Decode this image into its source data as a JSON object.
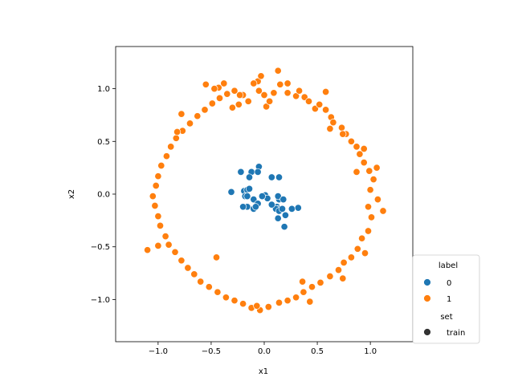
{
  "chart_data": {
    "type": "scatter",
    "title": "",
    "xlabel": "x1",
    "ylabel": "x2",
    "xlim": [
      -1.4,
      1.4
    ],
    "ylim": [
      -1.4,
      1.4
    ],
    "xticks": [
      -1.0,
      -0.5,
      0.0,
      0.5,
      1.0
    ],
    "yticks": [
      -1.0,
      -0.5,
      0.0,
      0.5,
      1.0
    ],
    "xtick_labels": [
      "−1.0",
      "−0.5",
      "0.0",
      "0.5",
      "1.0"
    ],
    "ytick_labels": [
      "−1.0",
      "−0.5",
      "0.0",
      "0.5",
      "1.0"
    ],
    "grid": false,
    "legend": {
      "placement": "right-bottom (outside)",
      "hue_title": "label",
      "style_title": "set",
      "entries": [
        {
          "label": "0",
          "color": "#1f77b4"
        },
        {
          "label": "1",
          "color": "#ff7f0e"
        },
        {
          "label": "train",
          "color": "#333333"
        }
      ]
    },
    "series": [
      {
        "name": "0",
        "color": "#1f77b4",
        "points": [
          [
            -0.05,
            0.26
          ],
          [
            -0.22,
            0.21
          ],
          [
            -0.12,
            0.21
          ],
          [
            -0.06,
            0.21
          ],
          [
            -0.14,
            0.16
          ],
          [
            0.07,
            0.16
          ],
          [
            0.14,
            0.16
          ],
          [
            -0.31,
            0.02
          ],
          [
            -0.19,
            0.03
          ],
          [
            -0.16,
            0.04
          ],
          [
            -0.14,
            0.05
          ],
          [
            -0.18,
            -0.02
          ],
          [
            0.01,
            -0.01
          ],
          [
            0.03,
            -0.04
          ],
          [
            0.14,
            -0.05
          ],
          [
            -0.1,
            -0.05
          ],
          [
            0.13,
            -0.02
          ],
          [
            0.18,
            -0.05
          ],
          [
            0.12,
            -0.12
          ],
          [
            0.13,
            -0.14
          ],
          [
            0.11,
            -0.14
          ],
          [
            0.14,
            -0.16
          ],
          [
            -0.16,
            -0.12
          ],
          [
            -0.1,
            -0.14
          ],
          [
            0.07,
            -0.1
          ],
          [
            -0.2,
            -0.12
          ],
          [
            -0.06,
            -0.09
          ],
          [
            -0.08,
            -0.12
          ],
          [
            0.2,
            -0.2
          ],
          [
            0.13,
            -0.23
          ],
          [
            0.19,
            -0.31
          ],
          [
            0.26,
            -0.14
          ],
          [
            0.32,
            -0.13
          ],
          [
            0.17,
            -0.14
          ],
          [
            -0.16,
            -0.02
          ],
          [
            -0.02,
            -0.02
          ]
        ]
      },
      {
        "name": "1",
        "color": "#ff7f0e",
        "points": [
          [
            -0.55,
            1.04
          ],
          [
            -0.43,
            1.01
          ],
          [
            -0.38,
            1.05
          ],
          [
            -0.47,
            1.0
          ],
          [
            -0.28,
            0.98
          ],
          [
            -0.2,
            0.94
          ],
          [
            -0.15,
            0.88
          ],
          [
            -0.24,
            0.85
          ],
          [
            -0.3,
            0.82
          ],
          [
            -0.06,
            1.07
          ],
          [
            -0.03,
            1.12
          ],
          [
            -0.1,
            1.05
          ],
          [
            -0.05,
            0.98
          ],
          [
            0.02,
            0.83
          ],
          [
            0.0,
            0.94
          ],
          [
            0.09,
            0.96
          ],
          [
            0.15,
            1.04
          ],
          [
            0.13,
            1.17
          ],
          [
            0.22,
            1.05
          ],
          [
            0.22,
            0.96
          ],
          [
            0.3,
            0.93
          ],
          [
            0.33,
            0.98
          ],
          [
            0.38,
            0.92
          ],
          [
            0.42,
            0.88
          ],
          [
            0.48,
            0.81
          ],
          [
            0.52,
            0.85
          ],
          [
            0.58,
            0.8
          ],
          [
            0.63,
            0.73
          ],
          [
            0.65,
            0.68
          ],
          [
            0.73,
            0.63
          ],
          [
            0.77,
            0.57
          ],
          [
            0.82,
            0.5
          ],
          [
            0.87,
            0.45
          ],
          [
            0.9,
            0.38
          ],
          [
            0.94,
            0.3
          ],
          [
            0.99,
            0.22
          ],
          [
            1.03,
            0.14
          ],
          [
            1.0,
            0.04
          ],
          [
            1.07,
            -0.05
          ],
          [
            0.98,
            -0.12
          ],
          [
            1.01,
            -0.22
          ],
          [
            0.98,
            -0.35
          ],
          [
            0.92,
            -0.42
          ],
          [
            0.88,
            -0.52
          ],
          [
            0.82,
            -0.6
          ],
          [
            0.75,
            -0.65
          ],
          [
            0.7,
            -0.72
          ],
          [
            0.62,
            -0.78
          ],
          [
            0.53,
            -0.84
          ],
          [
            0.45,
            -0.88
          ],
          [
            0.37,
            -0.93
          ],
          [
            0.3,
            -0.98
          ],
          [
            0.22,
            -1.01
          ],
          [
            0.14,
            -1.03
          ],
          [
            0.04,
            -1.07
          ],
          [
            -0.04,
            -1.1
          ],
          [
            -0.12,
            -1.08
          ],
          [
            -0.2,
            -1.04
          ],
          [
            -0.28,
            -1.01
          ],
          [
            -0.36,
            -0.98
          ],
          [
            -0.44,
            -0.93
          ],
          [
            -0.52,
            -0.88
          ],
          [
            -0.6,
            -0.83
          ],
          [
            -0.66,
            -0.76
          ],
          [
            -0.72,
            -0.7
          ],
          [
            -0.78,
            -0.63
          ],
          [
            -0.84,
            -0.55
          ],
          [
            -0.9,
            -0.48
          ],
          [
            -0.93,
            -0.4
          ],
          [
            -0.98,
            -0.3
          ],
          [
            -1.0,
            -0.21
          ],
          [
            -1.03,
            -0.11
          ],
          [
            -1.05,
            -0.02
          ],
          [
            -1.02,
            0.08
          ],
          [
            -1.0,
            0.17
          ],
          [
            -0.97,
            0.27
          ],
          [
            -0.92,
            0.36
          ],
          [
            -0.88,
            0.45
          ],
          [
            -0.83,
            0.53
          ],
          [
            -0.77,
            0.6
          ],
          [
            -0.7,
            0.67
          ],
          [
            -0.63,
            0.74
          ],
          [
            -0.56,
            0.8
          ],
          [
            -0.49,
            0.86
          ],
          [
            -0.42,
            0.91
          ],
          [
            -0.35,
            0.95
          ],
          [
            -1.1,
            -0.53
          ],
          [
            -1.0,
            -0.49
          ],
          [
            -0.82,
            0.59
          ],
          [
            -0.78,
            0.76
          ],
          [
            0.58,
            0.97
          ],
          [
            0.74,
            0.57
          ],
          [
            0.87,
            0.21
          ],
          [
            0.74,
            -0.8
          ],
          [
            1.12,
            -0.16
          ],
          [
            0.94,
            0.43
          ],
          [
            1.06,
            0.25
          ],
          [
            0.95,
            -0.56
          ],
          [
            0.36,
            -0.83
          ],
          [
            -0.45,
            -0.6
          ],
          [
            -0.07,
            -1.06
          ],
          [
            0.43,
            -1.02
          ],
          [
            -0.23,
            0.94
          ],
          [
            0.05,
            0.88
          ],
          [
            0.62,
            0.62
          ]
        ]
      }
    ]
  }
}
